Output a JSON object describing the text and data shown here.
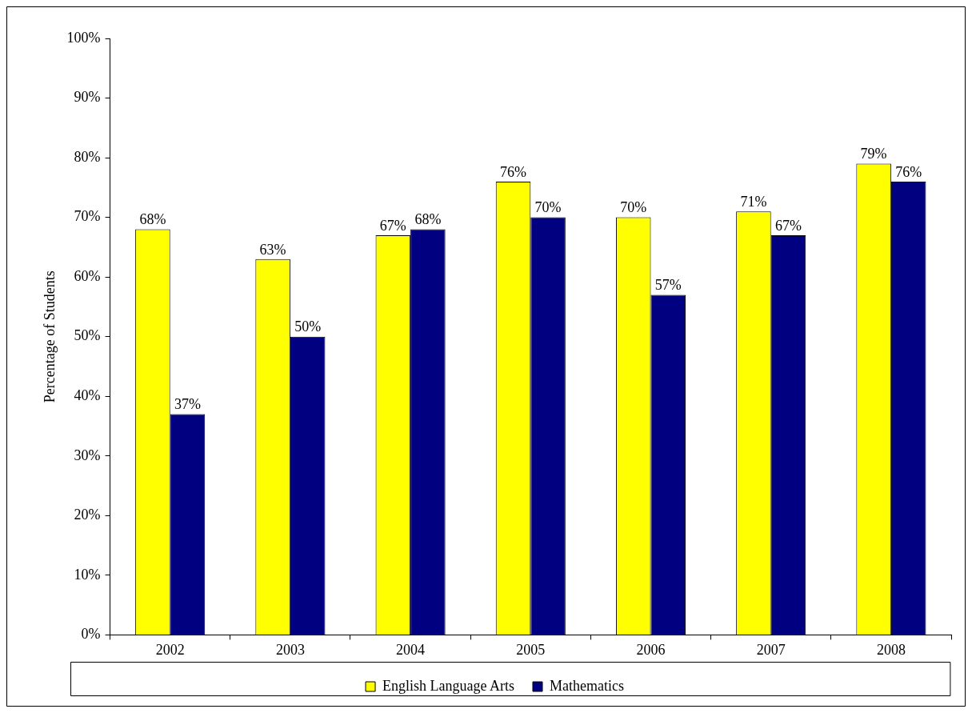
{
  "chart_data": {
    "type": "bar",
    "ylabel": "Percentage of Students",
    "categories": [
      "2002",
      "2003",
      "2004",
      "2005",
      "2006",
      "2007",
      "2008"
    ],
    "series": [
      {
        "name": "English Language Arts",
        "color": "#ffff00",
        "values": [
          68,
          63,
          67,
          76,
          70,
          71,
          79
        ],
        "value_labels": [
          "68%",
          "63%",
          "67%",
          "76%",
          "70%",
          "71%",
          "79%"
        ]
      },
      {
        "name": "Mathematics",
        "color": "#000080",
        "values": [
          37,
          50,
          68,
          70,
          57,
          67,
          76
        ],
        "value_labels": [
          "37%",
          "50%",
          "68%",
          "70%",
          "57%",
          "67%",
          "76%"
        ]
      }
    ],
    "ylim": [
      0,
      100
    ],
    "yticks": [
      {
        "value": 0,
        "label": "0%"
      },
      {
        "value": 10,
        "label": "10%"
      },
      {
        "value": 20,
        "label": "20%"
      },
      {
        "value": 30,
        "label": "30%"
      },
      {
        "value": 40,
        "label": "40%"
      },
      {
        "value": 50,
        "label": "50%"
      },
      {
        "value": 60,
        "label": "60%"
      },
      {
        "value": 70,
        "label": "70%"
      },
      {
        "value": 80,
        "label": "80%"
      },
      {
        "value": 90,
        "label": "90%"
      },
      {
        "value": 100,
        "label": "100%"
      }
    ],
    "grid": false,
    "legend": "bottom"
  }
}
